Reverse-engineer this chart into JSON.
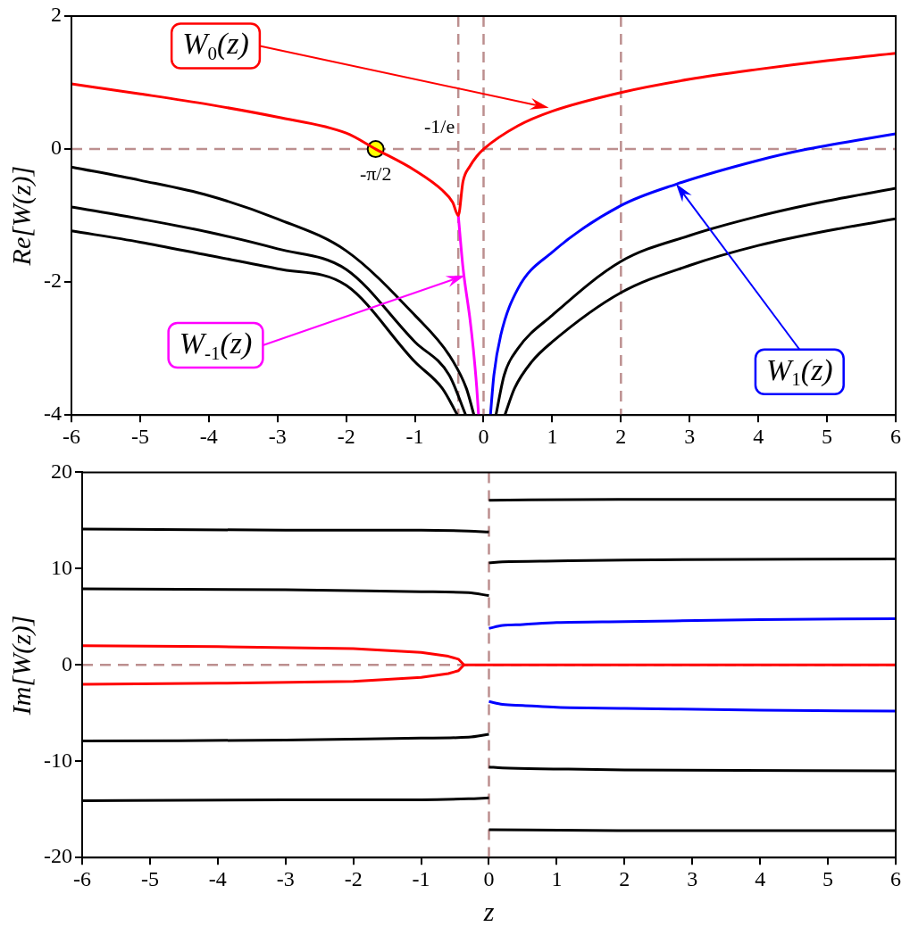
{
  "chart_data": [
    {
      "type": "line",
      "ylabel": "Re[W(z)]",
      "xlim": [
        -6,
        6
      ],
      "ylim": [
        -4,
        2
      ],
      "xticks": [
        -6,
        -5,
        -4,
        -3,
        -2,
        -1,
        0,
        1,
        2,
        3,
        4,
        5,
        6
      ],
      "yticks": [
        -4,
        -2,
        0,
        2
      ],
      "grid": false,
      "legend": false,
      "line_style": "solid",
      "series": [
        {
          "name": "W$_{0}$(z)",
          "color": "#ff0000",
          "x": [
            -6,
            -5,
            -4,
            -3,
            -2,
            -1.571,
            -1,
            -0.6,
            -0.45,
            -0.368,
            -0.3,
            -0.2,
            -0.1,
            0,
            0.5,
            1,
            2,
            3,
            4,
            5,
            6
          ],
          "values": [
            0.98,
            0.83,
            0.67,
            0.48,
            0.24,
            0,
            -0.32,
            -0.62,
            -0.8,
            -1,
            -0.49,
            -0.26,
            -0.11,
            0,
            0.35,
            0.57,
            0.85,
            1.05,
            1.2,
            1.33,
            1.44
          ]
        },
        {
          "name": "W$_{-1}$(z)",
          "color": "#ff00ff",
          "x": [
            -0.368,
            -0.3,
            -0.2,
            -0.15,
            -0.1,
            -0.073
          ],
          "values": [
            -1,
            -1.78,
            -2.54,
            -3,
            -3.58,
            -4
          ]
        },
        {
          "name": "W$_{1}$(z)",
          "color": "#0000ff",
          "x": [
            0.1,
            0.15,
            0.25,
            0.5,
            1,
            2,
            2.8,
            4,
            4.72,
            6
          ],
          "values": [
            -4,
            -3.4,
            -2.8,
            -2.1,
            -1.55,
            -0.85,
            -0.53,
            -0.17,
            0,
            0.23
          ]
        },
        {
          "color": "#000000",
          "x": [
            -6,
            -5,
            -4,
            -3,
            -2,
            -1,
            -0.5,
            -0.25,
            -0.14
          ],
          "values": [
            -0.27,
            -0.47,
            -0.7,
            -1.05,
            -1.53,
            -2.5,
            -3.1,
            -3.6,
            -4
          ]
        },
        {
          "color": "#000000",
          "x": [
            -6,
            -5,
            -4,
            -3,
            -2,
            -1,
            -0.5,
            -0.26
          ],
          "values": [
            -0.87,
            -1.05,
            -1.25,
            -1.5,
            -1.81,
            -2.9,
            -3.4,
            -4
          ]
        },
        {
          "color": "#000000",
          "x": [
            -6,
            -5,
            -4,
            -3,
            -2,
            -1,
            -0.6,
            -0.38
          ],
          "values": [
            -1.23,
            -1.4,
            -1.6,
            -1.8,
            -2.05,
            -3.2,
            -3.6,
            -4
          ]
        },
        {
          "color": "#000000",
          "x": [
            0.18,
            0.3,
            0.5,
            1,
            2,
            3,
            4,
            5,
            6
          ],
          "values": [
            -4,
            -3.4,
            -3,
            -2.5,
            -1.69,
            -1.3,
            -1.01,
            -0.78,
            -0.59
          ]
        },
        {
          "color": "#000000",
          "x": [
            0.31,
            0.45,
            0.7,
            1,
            2,
            3,
            4,
            5,
            6
          ],
          "values": [
            -4,
            -3.6,
            -3.2,
            -2.9,
            -2.16,
            -1.75,
            -1.45,
            -1.23,
            -1.05
          ]
        },
        {
          "type": "scatter",
          "marker": "circle",
          "color": "#ffff00",
          "x": [
            -1.571
          ],
          "values": [
            0
          ]
        }
      ],
      "ref_lines": [
        {
          "axis": "x",
          "value": 0,
          "color": "#bc8f8f",
          "line_style": "dashed"
        },
        {
          "axis": "x",
          "value": 2,
          "color": "#bc8f8f",
          "line_style": "dashed"
        },
        {
          "axis": "y",
          "value": 0,
          "color": "#bc8f8f",
          "line_style": "dashed"
        },
        {
          "axis": "x",
          "value": -0.368,
          "label": "-1/e",
          "color": "#bc8f8f",
          "line_style": "dashed"
        }
      ],
      "annotations": [
        {
          "text": "-π/2",
          "x": -1.571,
          "y": 0
        }
      ]
    },
    {
      "type": "line",
      "xlabel": "z",
      "ylabel": "Im[W(z)]",
      "xlim": [
        -6,
        6
      ],
      "ylim": [
        -20,
        20
      ],
      "xticks": [
        -6,
        -5,
        -4,
        -3,
        -2,
        -1,
        0,
        1,
        2,
        3,
        4,
        5,
        6
      ],
      "yticks": [
        -20,
        -10,
        0,
        10,
        20
      ],
      "grid": false,
      "legend": false,
      "line_style": "solid",
      "series": [
        {
          "color": "#ff0000",
          "x": [
            -6,
            -4,
            -2,
            -1,
            -0.6,
            -0.45,
            -0.368,
            -0.45,
            -0.6,
            -1,
            -2,
            -4,
            -6
          ],
          "values": [
            2,
            1.9,
            1.7,
            1.3,
            0.9,
            0.6,
            0,
            -0.6,
            -0.9,
            -1.3,
            -1.7,
            -1.9,
            -2
          ]
        },
        {
          "color": "#ff0000",
          "x": [
            -0.368,
            6
          ],
          "values": [
            0,
            0
          ]
        },
        {
          "color": "#000000",
          "x": [
            -6,
            -3,
            -1,
            -0.3,
            0
          ],
          "values": [
            7.9,
            7.8,
            7.6,
            7.5,
            7.2
          ]
        },
        {
          "color": "#000000",
          "x": [
            -6,
            -3,
            -1,
            -0.3,
            0
          ],
          "values": [
            14.1,
            14,
            14,
            13.9,
            13.8
          ]
        },
        {
          "color": "#000000",
          "x": [
            -6,
            -3,
            -1,
            -0.3,
            0
          ],
          "values": [
            -7.9,
            -7.8,
            -7.6,
            -7.5,
            -7.2
          ]
        },
        {
          "color": "#000000",
          "x": [
            -6,
            -3,
            -1,
            -0.3,
            0
          ],
          "values": [
            -14.1,
            -14,
            -14,
            -13.9,
            -13.8
          ]
        },
        {
          "color": "#0000ff",
          "x": [
            0,
            0.2,
            0.5,
            1,
            2,
            4,
            6
          ],
          "values": [
            3.8,
            4.1,
            4.2,
            4.4,
            4.5,
            4.7,
            4.8
          ]
        },
        {
          "color": "#0000ff",
          "x": [
            0,
            0.2,
            0.5,
            1,
            2,
            4,
            6
          ],
          "values": [
            -3.8,
            -4.1,
            -4.2,
            -4.4,
            -4.5,
            -4.7,
            -4.8
          ]
        },
        {
          "color": "#000000",
          "x": [
            0,
            0.2,
            1,
            2,
            6
          ],
          "values": [
            10.6,
            10.7,
            10.8,
            10.9,
            11
          ]
        },
        {
          "color": "#000000",
          "x": [
            0,
            0.2,
            1,
            2,
            6
          ],
          "values": [
            -10.6,
            -10.7,
            -10.8,
            -10.9,
            -11
          ]
        },
        {
          "color": "#000000",
          "x": [
            0,
            2,
            6
          ],
          "values": [
            17.1,
            17.2,
            17.2
          ]
        },
        {
          "color": "#000000",
          "x": [
            0,
            2,
            6
          ],
          "values": [
            -17.1,
            -17.2,
            -17.2
          ]
        }
      ],
      "ref_lines": [
        {
          "axis": "x",
          "value": 0,
          "color": "#bc8f8f",
          "line_style": "dashed"
        },
        {
          "axis": "y",
          "value": 0,
          "color": "#bc8f8f",
          "line_style": "dashed"
        }
      ]
    }
  ]
}
